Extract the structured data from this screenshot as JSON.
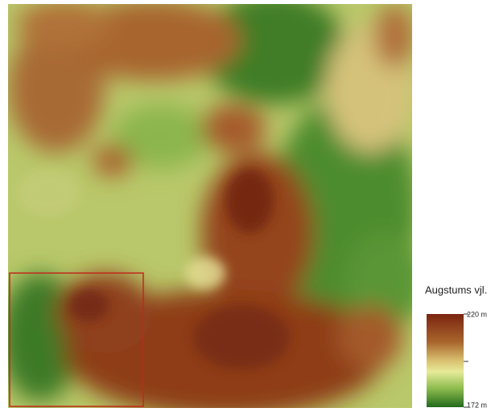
{
  "legend": {
    "title": "Augstums vjl.",
    "max": {
      "value": 220,
      "label": "220 m"
    },
    "min": {
      "value": 172,
      "label": "172 m"
    }
  }
}
